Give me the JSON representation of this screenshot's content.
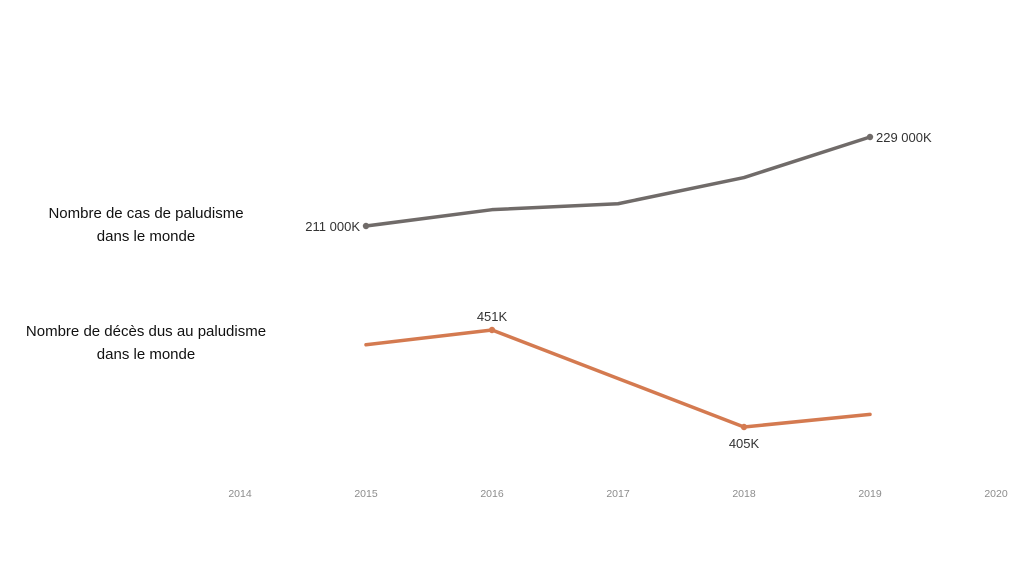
{
  "chart_data": {
    "type": "line",
    "x": [
      2015,
      2016,
      2017,
      2018,
      2019
    ],
    "xlim": [
      2014,
      2020
    ],
    "x_ticks": [
      "2014",
      "2015",
      "2016",
      "2017",
      "2018",
      "2019",
      "2020"
    ],
    "grid": false,
    "legend": "none",
    "series": [
      {
        "id": "cases",
        "row_label_lines": [
          "Nombre de cas de paludisme",
          "dans le monde"
        ],
        "unit": "K",
        "values": [
          211000,
          214300,
          215500,
          220800,
          229000
        ],
        "ylim": [
          208800,
          230500
        ],
        "color": "#706b69",
        "data_labels": [
          {
            "index": 0,
            "text": "211 000K",
            "position": "left"
          },
          {
            "index": 4,
            "text": "229 000K",
            "position": "right"
          }
        ]
      },
      {
        "id": "deaths",
        "row_label_lines": [
          "Nombre de décès dus au paludisme",
          "dans le monde"
        ],
        "unit": "K",
        "values": [
          444,
          451,
          428,
          405,
          411
        ],
        "ylim": [
          393,
          471
        ],
        "color": "#d47a50",
        "data_labels": [
          {
            "index": 1,
            "text": "451K",
            "position": "above"
          },
          {
            "index": 3,
            "text": "405K",
            "position": "below"
          }
        ]
      }
    ]
  }
}
